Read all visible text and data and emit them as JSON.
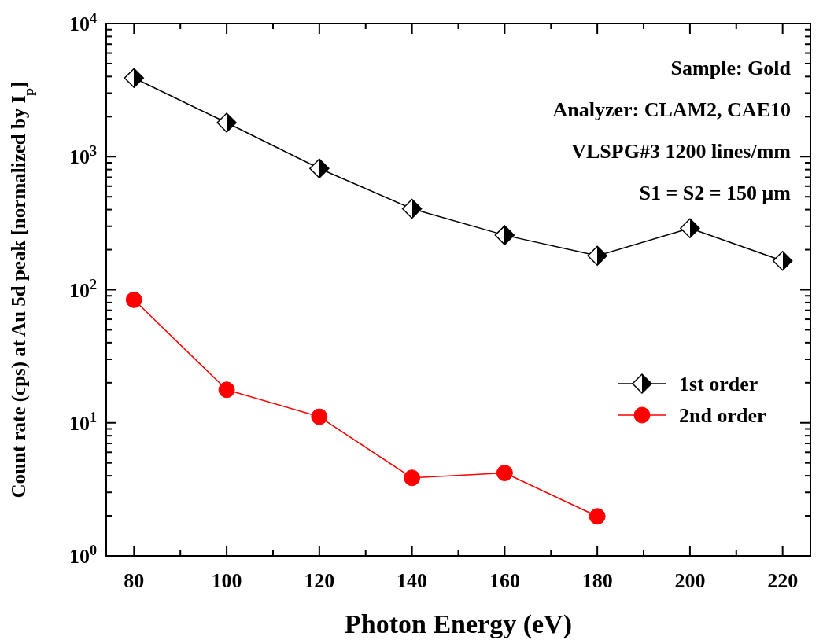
{
  "chart_data": {
    "type": "line",
    "xlabel": "Photon Energy (eV)",
    "ylabel": "Count rate (cps) at Au 5d peak [normalized by I$_{p}$]",
    "x": [
      80,
      100,
      120,
      140,
      160,
      180,
      200,
      220
    ],
    "series": [
      {
        "name": "1st order",
        "color": "#000000",
        "marker": "diamond",
        "values": [
          3900,
          1800,
          815,
          406,
          257,
          180,
          290,
          165
        ]
      },
      {
        "name": "2nd order",
        "color": "#ff0000",
        "marker": "circle",
        "values": [
          84,
          17.7,
          11.1,
          3.86,
          4.2,
          1.98,
          null,
          null
        ]
      }
    ],
    "log": "y",
    "xlim": [
      74,
      226
    ],
    "ylim": [
      1,
      10000
    ],
    "xticks": [
      80,
      {
        "value": 90,
        "label": null
      },
      100,
      {
        "value": 110,
        "label": null
      },
      120,
      {
        "value": 130,
        "label": null
      },
      140,
      {
        "value": 150,
        "label": null
      },
      160,
      {
        "value": 170,
        "label": null
      },
      180,
      {
        "value": 190,
        "label": null
      },
      200,
      {
        "value": 210,
        "label": null
      },
      220
    ],
    "yticks": [
      {
        "value": 1,
        "label": "10$^{0}$"
      },
      {
        "value": 10,
        "label": "10$^{1}$"
      },
      {
        "value": 100,
        "label": "10$^{2}$"
      },
      {
        "value": 1000,
        "label": "10$^{3}$"
      },
      {
        "value": 10000,
        "label": "10$^{4}$"
      }
    ],
    "annotations": [
      "Sample: Gold",
      "Analyzer: CLAM2, CAE10",
      "VLSPG#3  1200 lines/mm",
      "S1 = S2 = 150 μm"
    ],
    "legend": "right",
    "grid": false
  }
}
